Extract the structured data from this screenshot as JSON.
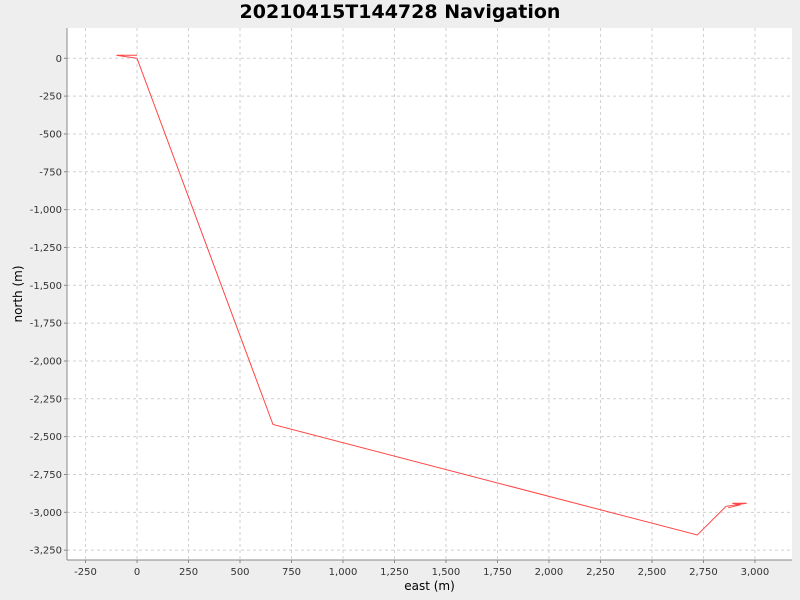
{
  "chart_data": {
    "type": "line",
    "title": "20210415T144728 Navigation",
    "xlabel": "east (m)",
    "ylabel": "north (m)",
    "xlim": [
      -340,
      3180
    ],
    "ylim": [
      -3315,
      200
    ],
    "xticks": [
      -250,
      0,
      250,
      500,
      750,
      1000,
      1250,
      1500,
      1750,
      2000,
      2250,
      2500,
      2750,
      3000
    ],
    "xtick_labels": [
      "-250",
      "0",
      "250",
      "500",
      "750",
      "1,000",
      "1,250",
      "1,500",
      "1,750",
      "2,000",
      "2,250",
      "2,500",
      "2,750",
      "3,000"
    ],
    "yticks": [
      0,
      -250,
      -500,
      -750,
      -1000,
      -1250,
      -1500,
      -1750,
      -2000,
      -2250,
      -2500,
      -2750,
      -3000,
      -3250
    ],
    "ytick_labels": [
      "0",
      "-250",
      "-500",
      "-750",
      "-1,000",
      "-1,250",
      "-1,500",
      "-1,750",
      "-2,000",
      "-2,250",
      "-2,500",
      "-2,750",
      "-3,000",
      "-3,250"
    ],
    "grid": true,
    "series": [
      {
        "color": "#ff4444",
        "x": [
          -100,
          0,
          -100,
          0,
          660,
          2720,
          2860,
          2960,
          2890,
          2930,
          2870
        ],
        "y": [
          20,
          20,
          20,
          0,
          -2420,
          -3150,
          -2960,
          -2940,
          -2940,
          -2950,
          -2970
        ]
      }
    ]
  },
  "colors": {
    "page_background": "#eeeeee",
    "plot_background": "#ffffff",
    "grid": "#d0d0d0",
    "axis": "#888888",
    "series": "#ff4444"
  }
}
